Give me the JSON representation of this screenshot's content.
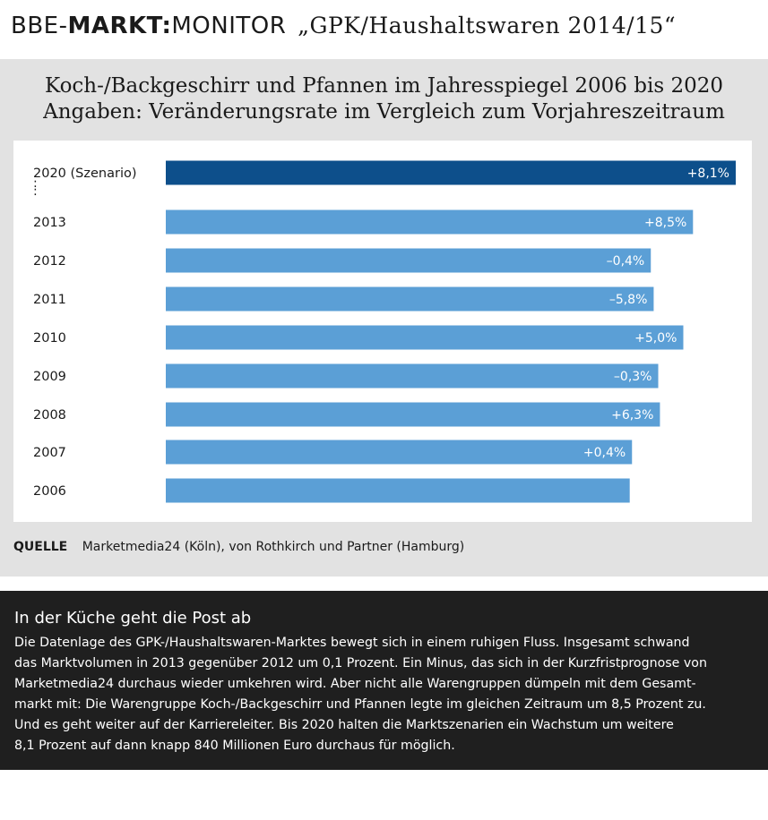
{
  "header": {
    "brand_bbe": "BBE-",
    "brand_markt": "MARKT:",
    "brand_monitor": "MONITOR",
    "report_title": "„GPK/Haushaltswaren 2014/15“"
  },
  "colors": {
    "panel_bg": "#e2e2e2",
    "bar_highlight": "#0d4f8b",
    "bar_default": "#5b9fd6",
    "textbox_bg": "#1f1f1f"
  },
  "chart_data": {
    "type": "bar",
    "orientation": "horizontal",
    "title_lines": [
      "Koch-/Backgeschirr und Pfannen im Jahresspiegel 2006 bis 2020",
      "Angaben: Veränderungsrate im Vergleich zum Vorjahreszeitraum"
    ],
    "ellipsis": ":",
    "categories": [
      "2020 (Szenario)",
      "2013",
      "2012",
      "2011",
      "2010",
      "2009",
      "2008",
      "2007",
      "2006"
    ],
    "values": [
      8.1,
      8.5,
      -0.4,
      -5.8,
      5.0,
      -0.3,
      6.3,
      0.4,
      null
    ],
    "labels": [
      "+8,1%",
      "+8,5%",
      "–0,4%",
      "–5,8%",
      "+5,0%",
      "–0,3%",
      "+6,3%",
      "+0,4%",
      ""
    ],
    "relative_bar_lengths": [
      1.0,
      0.925,
      0.851,
      0.856,
      0.908,
      0.864,
      0.867,
      0.818,
      0.814
    ],
    "highlight_index": 0
  },
  "source": {
    "label": "QUELLE",
    "text": "Marketmedia24 (Köln), von Rothkirch und Partner (Hamburg)"
  },
  "textbox": {
    "title": "In der Küche geht die Post ab",
    "lines": [
      "Die Datenlage des GPK-/Haushaltswaren-Marktes bewegt sich in einem ruhigen Fluss. Insgesamt schwand",
      "das Marktvolumen in 2013 gegenüber 2012 um 0,1 Prozent. Ein Minus, das sich in der Kurzfristprognose von",
      "Marketmedia24 durchaus wieder umkehren wird. Aber nicht alle Warengruppen dümpeln mit dem Gesamt-",
      "markt mit: Die Warengruppe Koch-/Backgeschirr und Pfannen legte im gleichen Zeitraum um 8,5 Prozent zu.",
      "Und es geht weiter auf der Karriereleiter. Bis 2020 halten die Marktszenarien ein Wachstum um weitere",
      "8,1 Prozent auf dann knapp 840 Millionen Euro durchaus für möglich."
    ]
  }
}
